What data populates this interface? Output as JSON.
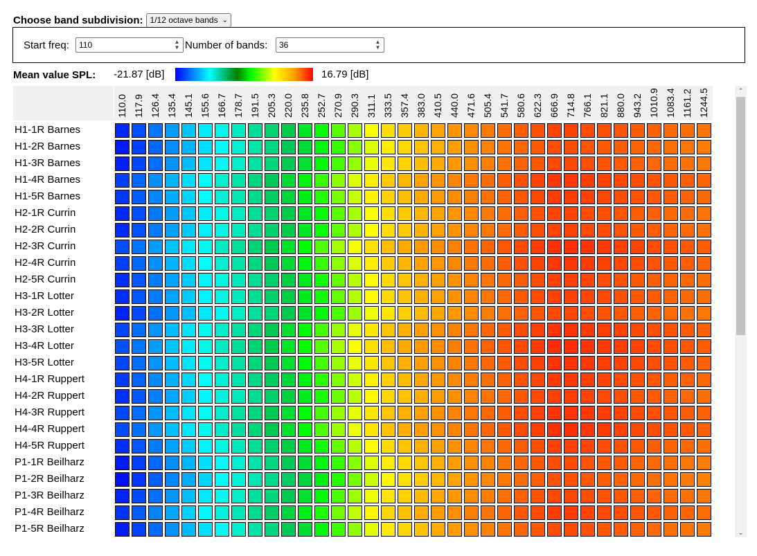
{
  "controls": {
    "subdivision_label": "Choose band subdivision:",
    "subdivision_value": "1/12 octave bands",
    "start_freq_label": "Start freq:",
    "start_freq_value": "110",
    "num_bands_label": "Number of bands:",
    "num_bands_value": "36"
  },
  "legend": {
    "label": "Mean value SPL:",
    "min": "-21.87 [dB]",
    "max": "16.79 [dB]",
    "min_value": -21.87,
    "max_value": 16.79,
    "colors": [
      "#0000ff",
      "#00ffff",
      "#008000",
      "#00ff00",
      "#ffff00",
      "#ffa500",
      "#ff0000"
    ]
  },
  "heatmap": {
    "columns": [
      "110.0",
      "117.9",
      "126.4",
      "135.4",
      "145.1",
      "155.6",
      "166.7",
      "178.7",
      "191.5",
      "205.3",
      "220.0",
      "235.8",
      "252.7",
      "270.9",
      "290.3",
      "311.1",
      "333.5",
      "357.4",
      "383.0",
      "410.5",
      "440.0",
      "471.6",
      "505.4",
      "541.7",
      "580.6",
      "622.3",
      "666.9",
      "714.8",
      "766.1",
      "821.1",
      "880.0",
      "943.2",
      "1010.9",
      "1083.4",
      "1161.2",
      "1244.5"
    ],
    "rows": [
      "H1-1R Barnes",
      "H1-2R Barnes",
      "H1-3R Barnes",
      "H1-4R Barnes",
      "H1-5R Barnes",
      "H2-1R Currin",
      "H2-2R Currin",
      "H2-3R Currin",
      "H2-4R Currin",
      "H2-5R Currin",
      "H3-1R Lotter",
      "H3-2R Lotter",
      "H3-3R Lotter",
      "H3-4R Lotter",
      "H3-5R Lotter",
      "H4-1R Ruppert",
      "H4-2R Ruppert",
      "H4-3R Ruppert",
      "H4-4R Ruppert",
      "H4-5R Ruppert",
      "P1-1R Beilharz",
      "P1-2R Beilharz",
      "P1-3R Beilharz",
      "P1-4R Beilharz",
      "P1-5R Beilharz"
    ],
    "row_offsets": [
      0,
      -0.5,
      -0.3,
      0.8,
      0.5,
      0,
      0.1,
      1.2,
      0.8,
      0.2,
      0.2,
      -0.2,
      1,
      1.3,
      1,
      0.6,
      0.3,
      1,
      1.1,
      0.2,
      -0.5,
      -0.8,
      -0.2,
      0.4,
      -0.4
    ]
  }
}
